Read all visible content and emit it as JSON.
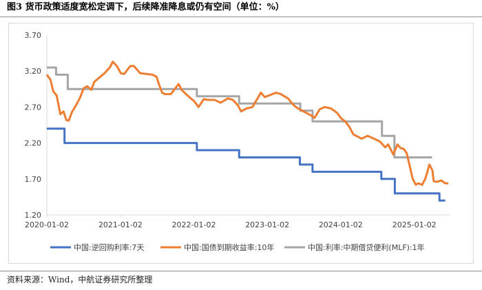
{
  "title": "图3  货币政策适度宽松定调下，后续降准降息或仍有空间（单位：%）",
  "source": "资料来源：Wind，中航证券研究所整理",
  "chart_data": {
    "type": "line",
    "xlabel": "",
    "ylabel": "",
    "x_ticks": [
      "2020-01-02",
      "2021-01-02",
      "2022-01-02",
      "2023-01-02",
      "2024-01-02",
      "2025-01-02"
    ],
    "x_range": [
      "2020-01-02",
      "2025-06-30"
    ],
    "y_ticks": [
      1.2,
      1.7,
      2.2,
      2.7,
      3.2,
      3.7
    ],
    "y_tick_labels": [
      "1.20",
      "1.70",
      "2.20",
      "2.70",
      "3.20",
      "3.70"
    ],
    "ylim": [
      1.2,
      3.7
    ],
    "grid": false,
    "legend_position": "bottom",
    "series": [
      {
        "name": "中国:逆回购利率:7天",
        "color": "#4472C4",
        "step": true,
        "points": [
          [
            "2020-01-02",
            2.4
          ],
          [
            "2020-02-03",
            2.4
          ],
          [
            "2020-02-04",
            2.4
          ],
          [
            "2020-03-30",
            2.2
          ],
          [
            "2022-01-17",
            2.1
          ],
          [
            "2022-08-15",
            2.0
          ],
          [
            "2023-06-13",
            1.9
          ],
          [
            "2023-08-15",
            1.8
          ],
          [
            "2024-07-22",
            1.7
          ],
          [
            "2024-09-27",
            1.5
          ],
          [
            "2025-05-07",
            1.4
          ],
          [
            "2025-06-05",
            1.4
          ]
        ]
      },
      {
        "name": "中国:国债到期收益率:10年",
        "color": "#ED7D31",
        "step": false,
        "points": [
          [
            "2020-01-02",
            3.15
          ],
          [
            "2020-01-20",
            3.08
          ],
          [
            "2020-02-03",
            2.92
          ],
          [
            "2020-02-20",
            2.86
          ],
          [
            "2020-03-09",
            2.6
          ],
          [
            "2020-03-25",
            2.64
          ],
          [
            "2020-04-08",
            2.52
          ],
          [
            "2020-04-20",
            2.51
          ],
          [
            "2020-05-06",
            2.63
          ],
          [
            "2020-05-25",
            2.72
          ],
          [
            "2020-06-15",
            2.83
          ],
          [
            "2020-07-03",
            2.96
          ],
          [
            "2020-07-20",
            2.99
          ],
          [
            "2020-08-10",
            2.94
          ],
          [
            "2020-08-25",
            3.05
          ],
          [
            "2020-09-15",
            3.1
          ],
          [
            "2020-10-15",
            3.17
          ],
          [
            "2020-11-10",
            3.25
          ],
          [
            "2020-11-25",
            3.33
          ],
          [
            "2020-12-15",
            3.27
          ],
          [
            "2021-01-04",
            3.17
          ],
          [
            "2021-01-20",
            3.16
          ],
          [
            "2021-02-20",
            3.27
          ],
          [
            "2021-03-10",
            3.27
          ],
          [
            "2021-04-10",
            3.17
          ],
          [
            "2021-05-10",
            3.16
          ],
          [
            "2021-06-10",
            3.15
          ],
          [
            "2021-07-01",
            3.12
          ],
          [
            "2021-07-12",
            3.02
          ],
          [
            "2021-07-28",
            2.9
          ],
          [
            "2021-08-10",
            2.88
          ],
          [
            "2021-09-10",
            2.88
          ],
          [
            "2021-10-18",
            3.02
          ],
          [
            "2021-11-05",
            2.93
          ],
          [
            "2021-12-10",
            2.84
          ],
          [
            "2022-01-04",
            2.78
          ],
          [
            "2022-01-25",
            2.7
          ],
          [
            "2022-02-20",
            2.81
          ],
          [
            "2022-03-10",
            2.8
          ],
          [
            "2022-04-15",
            2.8
          ],
          [
            "2022-05-15",
            2.76
          ],
          [
            "2022-06-20",
            2.82
          ],
          [
            "2022-07-15",
            2.8
          ],
          [
            "2022-08-10",
            2.72
          ],
          [
            "2022-08-25",
            2.64
          ],
          [
            "2022-09-20",
            2.68
          ],
          [
            "2022-10-20",
            2.7
          ],
          [
            "2022-11-15",
            2.82
          ],
          [
            "2022-12-01",
            2.9
          ],
          [
            "2022-12-20",
            2.84
          ],
          [
            "2023-01-10",
            2.86
          ],
          [
            "2023-02-15",
            2.9
          ],
          [
            "2023-03-10",
            2.88
          ],
          [
            "2023-04-15",
            2.82
          ],
          [
            "2023-05-15",
            2.72
          ],
          [
            "2023-06-10",
            2.67
          ],
          [
            "2023-07-15",
            2.62
          ],
          [
            "2023-08-10",
            2.58
          ],
          [
            "2023-08-25",
            2.55
          ],
          [
            "2023-09-20",
            2.67
          ],
          [
            "2023-10-15",
            2.7
          ],
          [
            "2023-11-15",
            2.68
          ],
          [
            "2023-12-15",
            2.62
          ],
          [
            "2024-01-05",
            2.54
          ],
          [
            "2024-01-25",
            2.5
          ],
          [
            "2024-02-15",
            2.42
          ],
          [
            "2024-03-05",
            2.32
          ],
          [
            "2024-04-15",
            2.26
          ],
          [
            "2024-05-15",
            2.3
          ],
          [
            "2024-06-15",
            2.26
          ],
          [
            "2024-07-15",
            2.22
          ],
          [
            "2024-08-10",
            2.14
          ],
          [
            "2024-08-25",
            2.18
          ],
          [
            "2024-09-20",
            2.04
          ],
          [
            "2024-10-10",
            2.18
          ],
          [
            "2024-10-25",
            2.13
          ],
          [
            "2024-11-10",
            2.12
          ],
          [
            "2024-11-25",
            2.06
          ],
          [
            "2024-12-10",
            1.88
          ],
          [
            "2024-12-25",
            1.7
          ],
          [
            "2025-01-10",
            1.62
          ],
          [
            "2025-01-20",
            1.64
          ],
          [
            "2025-02-10",
            1.62
          ],
          [
            "2025-02-25",
            1.7
          ],
          [
            "2025-03-10",
            1.82
          ],
          [
            "2025-03-18",
            1.9
          ],
          [
            "2025-04-02",
            1.82
          ],
          [
            "2025-04-08",
            1.67
          ],
          [
            "2025-04-25",
            1.66
          ],
          [
            "2025-05-15",
            1.68
          ],
          [
            "2025-06-05",
            1.64
          ],
          [
            "2025-06-20",
            1.64
          ]
        ]
      },
      {
        "name": "中国:利率:中期借贷便利(MLF):1年",
        "color": "#A5A5A5",
        "step": true,
        "points": [
          [
            "2020-01-02",
            3.25
          ],
          [
            "2020-02-17",
            3.15
          ],
          [
            "2020-04-15",
            2.95
          ],
          [
            "2022-01-17",
            2.85
          ],
          [
            "2022-08-15",
            2.75
          ],
          [
            "2023-06-15",
            2.65
          ],
          [
            "2023-08-15",
            2.5
          ],
          [
            "2024-07-25",
            2.3
          ],
          [
            "2024-09-25",
            2.0
          ],
          [
            "2025-03-31",
            2.0
          ]
        ]
      }
    ]
  }
}
